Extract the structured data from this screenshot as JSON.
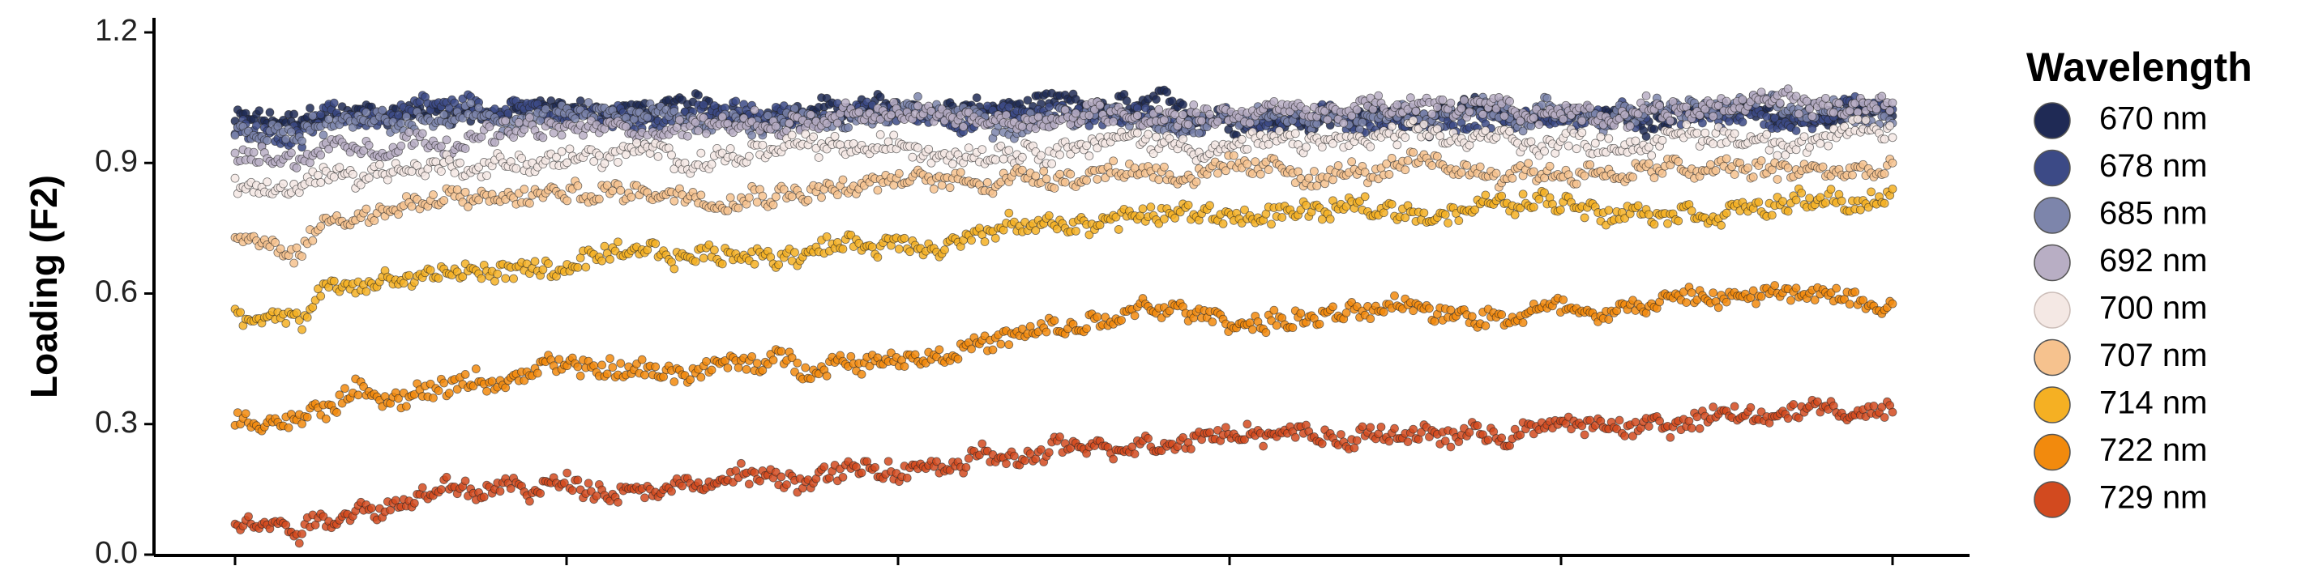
{
  "chart_data": {
    "type": "scatter",
    "title": "",
    "xlabel": "",
    "ylabel": "Loading (F2)",
    "ylim": [
      0.0,
      1.2
    ],
    "yticks": [
      0.0,
      0.3,
      0.6,
      0.9,
      1.2
    ],
    "ytick_labels": [
      "0.0",
      "0.3",
      "0.6",
      "0.9",
      "1.2"
    ],
    "xlim": [
      0,
      100
    ],
    "xticks": [
      0,
      20,
      40,
      60,
      80,
      100
    ],
    "grid": false,
    "legend": {
      "title": "Wavelength",
      "position": "right"
    },
    "x": [
      0,
      2.5,
      4,
      5,
      10,
      20,
      30,
      40,
      50,
      55,
      60,
      70,
      80,
      90,
      100
    ],
    "series": [
      {
        "name": "670 nm",
        "color": "#1f2a55",
        "values": [
          1.0,
          0.99,
          0.98,
          1.01,
          1.02,
          1.02,
          1.02,
          1.02,
          1.02,
          1.02,
          1.01,
          1.01,
          1.01,
          1.01,
          1.01
        ]
      },
      {
        "name": "678 nm",
        "color": "#3c4a86",
        "values": [
          0.99,
          0.98,
          0.97,
          1.0,
          1.01,
          1.01,
          1.01,
          1.01,
          1.01,
          1.01,
          1.0,
          1.0,
          1.0,
          1.0,
          1.0
        ]
      },
      {
        "name": "685 nm",
        "color": "#7d85ab",
        "values": [
          0.97,
          0.96,
          0.95,
          0.98,
          0.99,
          1.0,
          1.0,
          1.01,
          1.01,
          1.01,
          1.01,
          1.01,
          1.01,
          1.02,
          1.02
        ]
      },
      {
        "name": "692 nm",
        "color": "#b8aec4",
        "values": [
          0.92,
          0.91,
          0.9,
          0.94,
          0.96,
          0.97,
          0.99,
          1.0,
          1.01,
          1.02,
          1.02,
          1.02,
          1.02,
          1.03,
          1.03
        ]
      },
      {
        "name": "700 nm",
        "color": "#f4e8e4",
        "values": [
          0.85,
          0.84,
          0.83,
          0.87,
          0.89,
          0.91,
          0.92,
          0.93,
          0.95,
          0.95,
          0.94,
          0.95,
          0.95,
          0.96,
          0.96
        ]
      },
      {
        "name": "707 nm",
        "color": "#f6c28e",
        "values": [
          0.73,
          0.72,
          0.7,
          0.77,
          0.8,
          0.83,
          0.84,
          0.85,
          0.88,
          0.89,
          0.87,
          0.88,
          0.88,
          0.88,
          0.88
        ]
      },
      {
        "name": "714 nm",
        "color": "#f5b023",
        "values": [
          0.55,
          0.54,
          0.52,
          0.6,
          0.64,
          0.66,
          0.69,
          0.72,
          0.76,
          0.78,
          0.78,
          0.79,
          0.81,
          0.8,
          0.81
        ]
      },
      {
        "name": "722 nm",
        "color": "#f28a0d",
        "values": [
          0.32,
          0.31,
          0.3,
          0.35,
          0.38,
          0.42,
          0.43,
          0.46,
          0.51,
          0.56,
          0.54,
          0.55,
          0.57,
          0.59,
          0.6
        ]
      },
      {
        "name": "729 nm",
        "color": "#d24a1f",
        "values": [
          0.07,
          0.07,
          0.07,
          0.09,
          0.13,
          0.16,
          0.17,
          0.19,
          0.23,
          0.27,
          0.29,
          0.27,
          0.29,
          0.31,
          0.34
        ]
      }
    ]
  }
}
